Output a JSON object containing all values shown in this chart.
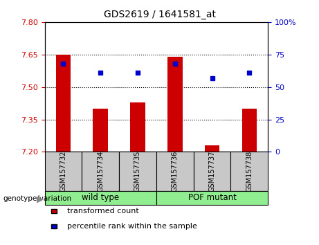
{
  "title": "GDS2619 / 1641581_at",
  "samples": [
    "GSM157732",
    "GSM157734",
    "GSM157735",
    "GSM157736",
    "GSM157737",
    "GSM157738"
  ],
  "red_values": [
    7.65,
    7.4,
    7.43,
    7.64,
    7.23,
    7.4
  ],
  "blue_values_pct": [
    68,
    61,
    61,
    68,
    57,
    61
  ],
  "ylim_left": [
    7.2,
    7.8
  ],
  "ylim_right": [
    0,
    100
  ],
  "yticks_left": [
    7.2,
    7.35,
    7.5,
    7.65,
    7.8
  ],
  "yticks_right": [
    0,
    25,
    50,
    75,
    100
  ],
  "hlines": [
    7.35,
    7.5,
    7.65
  ],
  "group_labels": [
    "wild type",
    "POF mutant"
  ],
  "group_starts": [
    0,
    3
  ],
  "group_ends": [
    3,
    6
  ],
  "group_color": "#90ee90",
  "genotype_label": "genotype/variation",
  "legend_red": "transformed count",
  "legend_blue": "percentile rank within the sample",
  "bar_color": "#cc0000",
  "dot_color": "#0000cc",
  "sample_bg": "#c8c8c8",
  "plot_bg": "#ffffff",
  "bar_width": 0.4,
  "left_ycolor": "#cc0000",
  "right_ycolor": "#0000cc"
}
